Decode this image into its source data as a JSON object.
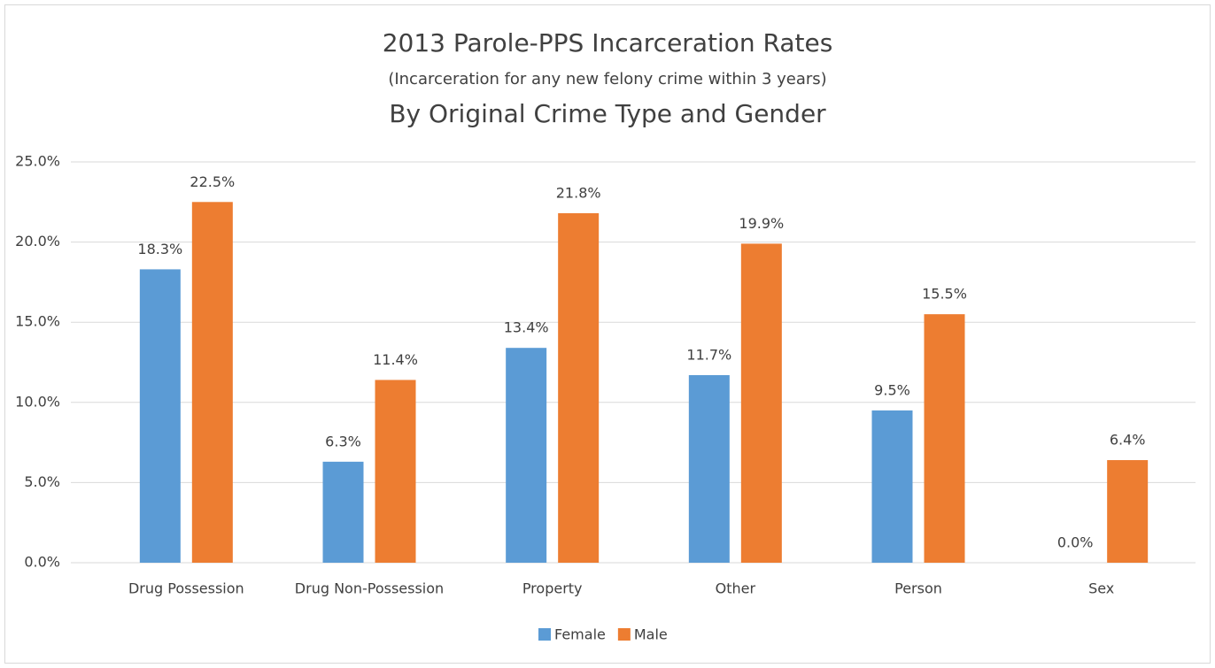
{
  "chart_data": {
    "type": "bar",
    "title": "2013 Parole-PPS Incarceration Rates",
    "subtitle": "(Incarceration for any new felony crime within 3 years)",
    "subtitle2": "By Original Crime Type and Gender",
    "categories": [
      "Drug Possession",
      "Drug Non-Possession",
      "Property",
      "Other",
      "Person",
      "Sex"
    ],
    "series": [
      {
        "name": "Female",
        "color": "#5b9bd5",
        "values": [
          18.3,
          6.3,
          13.4,
          11.7,
          9.5,
          0.0
        ],
        "value_labels": [
          "18.3%",
          "6.3%",
          "13.4%",
          "11.7%",
          "9.5%",
          "0.0%"
        ]
      },
      {
        "name": "Male",
        "color": "#ed7d31",
        "values": [
          22.5,
          11.4,
          21.8,
          19.9,
          15.5,
          6.4
        ],
        "value_labels": [
          "22.5%",
          "11.4%",
          "21.8%",
          "19.9%",
          "15.5%",
          "6.4%"
        ]
      }
    ],
    "ylim": [
      0,
      25
    ],
    "yticks": [
      {
        "value": 0,
        "label": "0.0%"
      },
      {
        "value": 5,
        "label": "5.0%"
      },
      {
        "value": 10,
        "label": "10.0%"
      },
      {
        "value": 15,
        "label": "15.0%"
      },
      {
        "value": 20,
        "label": "20.0%"
      },
      {
        "value": 25,
        "label": "25.0%"
      }
    ],
    "grid": true,
    "legend": "bottom"
  }
}
